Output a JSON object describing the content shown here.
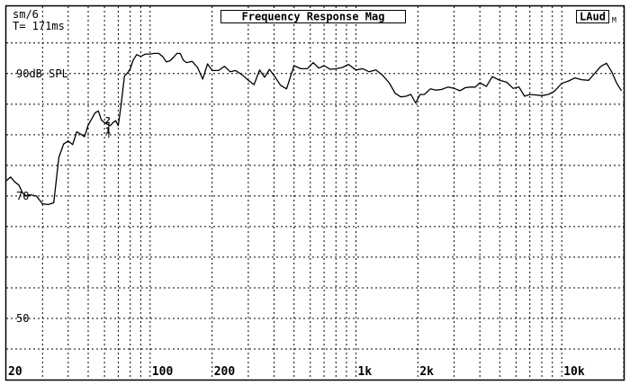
{
  "header": {
    "smoothing": "sm/6",
    "time": "T= 171ms",
    "title": "Frequency Response Mag",
    "badge": "LAud",
    "badge_sub": "M"
  },
  "chart_data": {
    "type": "line",
    "title": "Frequency Response Mag",
    "xscale": "log",
    "xlim": [
      20,
      20000
    ],
    "ylim": [
      40,
      101
    ],
    "x_ticks": [
      {
        "value": 20,
        "label": "20"
      },
      {
        "value": 100,
        "label": "100"
      },
      {
        "value": 200,
        "label": "200"
      },
      {
        "value": 1000,
        "label": "1k"
      },
      {
        "value": 2000,
        "label": "2k"
      },
      {
        "value": 10000,
        "label": "10k"
      }
    ],
    "x_gridlines": [
      30,
      40,
      50,
      60,
      70,
      80,
      90,
      100,
      200,
      300,
      400,
      500,
      600,
      700,
      800,
      900,
      1000,
      2000,
      3000,
      4000,
      5000,
      6000,
      7000,
      8000,
      9000,
      10000,
      20000
    ],
    "y_ticks": [
      {
        "value": 90,
        "label": "90dB SPL"
      },
      {
        "value": 70,
        "label": "70"
      },
      {
        "value": 50,
        "label": "50"
      }
    ],
    "y_gridlines": [
      95,
      90,
      85,
      80,
      75,
      70,
      65,
      60,
      55,
      50,
      45
    ],
    "grid": true,
    "cursors": [
      {
        "label": "1",
        "x": 63,
        "y": 80.8
      },
      {
        "label": "2",
        "x": 63,
        "y": 82.5
      }
    ],
    "series": [
      {
        "x": [
          20,
          21,
          22,
          23,
          24,
          25,
          26,
          28,
          30,
          32,
          34,
          36,
          38,
          40,
          42,
          44,
          46,
          48,
          50,
          52,
          54,
          56,
          58,
          60,
          62,
          64,
          66,
          68,
          70,
          72,
          75,
          78,
          80,
          83,
          86,
          90,
          95,
          100,
          105,
          110,
          115,
          120,
          125,
          130,
          135,
          140,
          145,
          150,
          160,
          170,
          180,
          190,
          200,
          215,
          230,
          245,
          260,
          280,
          300,
          320,
          340,
          360,
          380,
          400,
          430,
          460,
          500,
          540,
          580,
          620,
          660,
          700,
          750,
          800,
          860,
          920,
          1000,
          1080,
          1160,
          1250,
          1350,
          1450,
          1550,
          1650,
          1750,
          1850,
          1950,
          2050,
          2150,
          2300,
          2450,
          2600,
          2800,
          3000,
          3200,
          3400,
          3600,
          3800,
          4000,
          4300,
          4600,
          5000,
          5400,
          5800,
          6200,
          6600,
          7000,
          7500,
          8000,
          8600,
          9200,
          10000,
          10800,
          11600,
          12500,
          13500,
          14500,
          15500,
          16500,
          17500,
          18500,
          19500
        ],
        "y": [
          72.5,
          73.1,
          72.3,
          71.8,
          70.5,
          70.0,
          70.2,
          70.0,
          68.7,
          68.6,
          68.9,
          76.3,
          78.5,
          79.0,
          78.4,
          80.5,
          80.1,
          79.7,
          81.6,
          82.6,
          83.6,
          83.9,
          82.4,
          82.0,
          81.7,
          81.5,
          82.0,
          82.3,
          81.5,
          84.5,
          89.6,
          90.2,
          90.8,
          92.3,
          93.1,
          92.8,
          93.2,
          93.2,
          93.3,
          93.3,
          92.8,
          91.9,
          92.1,
          92.7,
          93.3,
          93.3,
          92.2,
          91.8,
          92.0,
          91.0,
          89.1,
          91.6,
          90.5,
          90.5,
          91.2,
          90.3,
          90.5,
          89.8,
          88.9,
          88.2,
          90.6,
          89.4,
          90.7,
          89.7,
          88.1,
          87.5,
          91.3,
          90.8,
          90.8,
          91.8,
          90.9,
          91.3,
          90.7,
          90.8,
          91.0,
          91.5,
          90.6,
          90.8,
          90.3,
          90.6,
          89.7,
          88.5,
          86.8,
          86.2,
          86.3,
          86.6,
          85.2,
          86.6,
          86.6,
          87.5,
          87.3,
          87.4,
          87.8,
          87.6,
          87.2,
          87.7,
          87.8,
          87.8,
          88.5,
          87.9,
          89.5,
          88.9,
          88.6,
          87.6,
          87.8,
          86.3,
          86.6,
          86.5,
          86.4,
          86.6,
          87.1,
          88.4,
          88.8,
          89.3,
          89.0,
          88.9,
          90.1,
          91.2,
          91.7,
          90.3,
          88.4,
          87.2
        ]
      }
    ]
  }
}
